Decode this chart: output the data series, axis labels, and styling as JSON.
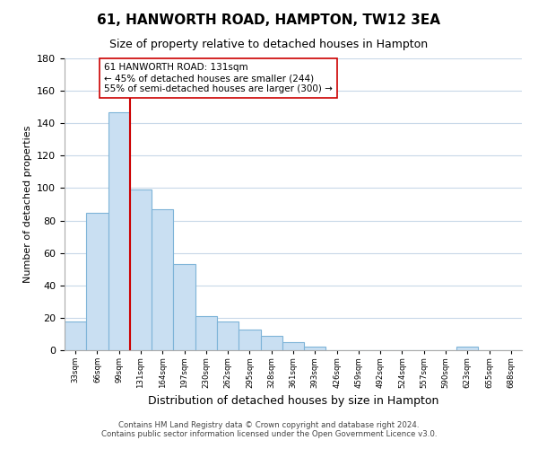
{
  "title": "61, HANWORTH ROAD, HAMPTON, TW12 3EA",
  "subtitle": "Size of property relative to detached houses in Hampton",
  "xlabel": "Distribution of detached houses by size in Hampton",
  "ylabel": "Number of detached properties",
  "bin_labels": [
    "33sqm",
    "66sqm",
    "99sqm",
    "131sqm",
    "164sqm",
    "197sqm",
    "230sqm",
    "262sqm",
    "295sqm",
    "328sqm",
    "361sqm",
    "393sqm",
    "426sqm",
    "459sqm",
    "492sqm",
    "524sqm",
    "557sqm",
    "590sqm",
    "623sqm",
    "655sqm",
    "688sqm"
  ],
  "bar_heights": [
    18,
    85,
    147,
    99,
    87,
    53,
    21,
    18,
    13,
    9,
    5,
    2,
    0,
    0,
    0,
    0,
    0,
    0,
    2,
    0,
    0
  ],
  "bar_color": "#c9dff2",
  "bar_edge_color": "#7eb4d8",
  "vline_x_index": 3,
  "vline_color": "#cc0000",
  "annotation_text": "61 HANWORTH ROAD: 131sqm\n← 45% of detached houses are smaller (244)\n55% of semi-detached houses are larger (300) →",
  "annotation_box_edgecolor": "#cc0000",
  "ylim": [
    0,
    180
  ],
  "yticks": [
    0,
    20,
    40,
    60,
    80,
    100,
    120,
    140,
    160,
    180
  ],
  "footnote1": "Contains HM Land Registry data © Crown copyright and database right 2024.",
  "footnote2": "Contains public sector information licensed under the Open Government Licence v3.0.",
  "background_color": "#ffffff",
  "grid_color": "#c8d8e8",
  "fig_width": 6.0,
  "fig_height": 5.0,
  "dpi": 100
}
